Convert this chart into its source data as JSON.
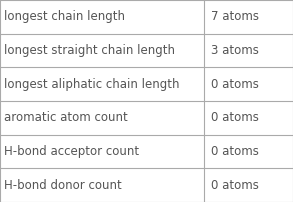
{
  "rows": [
    [
      "longest chain length",
      "7 atoms"
    ],
    [
      "longest straight chain length",
      "3 atoms"
    ],
    [
      "longest aliphatic chain length",
      "0 atoms"
    ],
    [
      "aromatic atom count",
      "0 atoms"
    ],
    [
      "H-bond acceptor count",
      "0 atoms"
    ],
    [
      "H-bond donor count",
      "0 atoms"
    ]
  ],
  "col_split": 0.695,
  "bg_color": "#ffffff",
  "border_color": "#aaaaaa",
  "text_color": "#555555",
  "font_size": 8.5
}
